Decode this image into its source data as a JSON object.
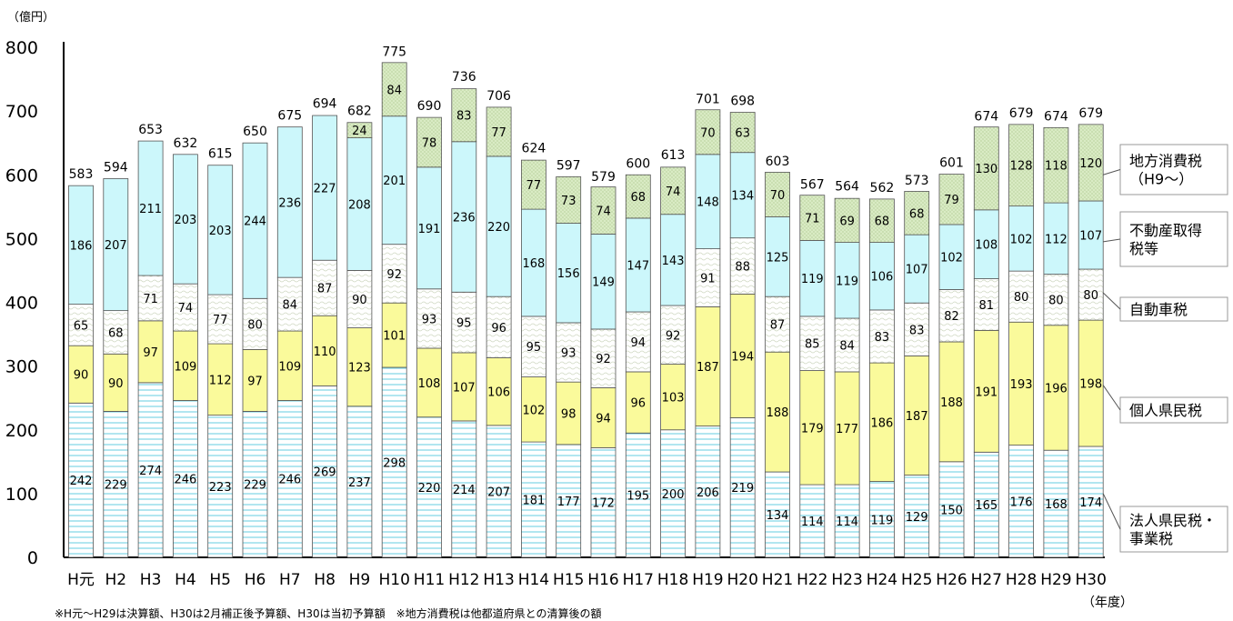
{
  "chart_data": {
    "type": "bar",
    "stacked": true,
    "ylabel": "（億円）",
    "xlabel": "（年度）",
    "ylim": [
      0,
      800
    ],
    "yticks": [
      0,
      100,
      200,
      300,
      400,
      500,
      600,
      700,
      800
    ],
    "grid": false,
    "legend_position": "right",
    "footnote": "※H元〜H29は決算額、H30は2月補正後予算額、H30は当初予算額　※地方消費税は他都道府県との清算後の額",
    "categories": [
      "H元",
      "H2",
      "H3",
      "H4",
      "H5",
      "H6",
      "H7",
      "H8",
      "H9",
      "H10",
      "H11",
      "H12",
      "H13",
      "H14",
      "H15",
      "H16",
      "H17",
      "H18",
      "H19",
      "H20",
      "H21",
      "H22",
      "H23",
      "H24",
      "H25",
      "H26",
      "H27",
      "H28",
      "H29",
      "H30"
    ],
    "series": [
      {
        "name": "法人県民税・事業税",
        "color": "#7fd6e6",
        "values": [
          242,
          229,
          274,
          246,
          223,
          229,
          246,
          269,
          237,
          298,
          220,
          214,
          207,
          181,
          177,
          172,
          195,
          200,
          206,
          219,
          134,
          114,
          114,
          119,
          129,
          150,
          165,
          176,
          168,
          174
        ]
      },
      {
        "name": "個人県民税",
        "color": "#fafa9b",
        "values": [
          90,
          90,
          97,
          109,
          112,
          97,
          109,
          110,
          123,
          101,
          108,
          107,
          106,
          102,
          98,
          94,
          96,
          103,
          187,
          194,
          188,
          179,
          177,
          186,
          187,
          188,
          191,
          193,
          196,
          198
        ]
      },
      {
        "name": "自動車税",
        "color": "#f2f2e6",
        "values": [
          65,
          68,
          71,
          74,
          77,
          80,
          84,
          87,
          90,
          92,
          93,
          95,
          96,
          95,
          93,
          92,
          94,
          92,
          91,
          88,
          87,
          85,
          84,
          83,
          83,
          82,
          81,
          80,
          80,
          80
        ]
      },
      {
        "name": "不動産取得税等",
        "color": "#ccf7fb",
        "values": [
          186,
          207,
          211,
          203,
          203,
          244,
          236,
          227,
          208,
          201,
          191,
          236,
          220,
          168,
          156,
          149,
          147,
          143,
          148,
          134,
          125,
          119,
          119,
          106,
          107,
          102,
          108,
          102,
          112,
          107
        ]
      },
      {
        "name": "地方消費税（H9〜）",
        "color": "#d5e8bf",
        "values": [
          null,
          null,
          null,
          null,
          null,
          null,
          null,
          null,
          24,
          84,
          78,
          83,
          77,
          77,
          73,
          74,
          68,
          74,
          70,
          63,
          70,
          71,
          69,
          68,
          68,
          79,
          130,
          128,
          118,
          120
        ]
      }
    ],
    "totals": [
      583,
      594,
      653,
      632,
      615,
      650,
      675,
      694,
      682,
      775,
      690,
      736,
      706,
      624,
      597,
      579,
      600,
      613,
      701,
      698,
      603,
      567,
      564,
      562,
      573,
      601,
      674,
      679,
      674,
      679
    ],
    "legend_labels": [
      [
        "地方消費税",
        "（H9〜）"
      ],
      [
        "不動産取得",
        "税等"
      ],
      [
        "自動車税"
      ],
      [
        "個人県民税"
      ],
      [
        "法人県民税・",
        "事業税"
      ]
    ]
  }
}
